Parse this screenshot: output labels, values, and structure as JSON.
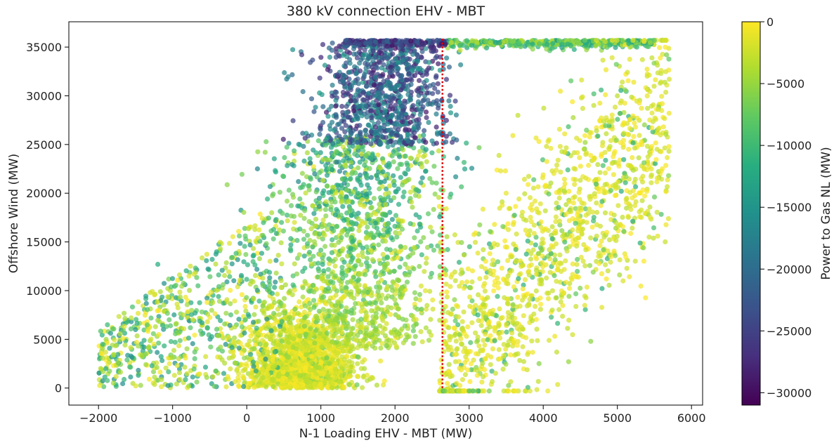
{
  "chart_data": {
    "type": "scatter",
    "title": "380 kV connection EHV - MBT",
    "xlabel": "N-1 Loading EHV - MBT (MW)",
    "ylabel": "Offshore Wind (MW)",
    "xlim": [
      -2400,
      6150
    ],
    "ylim": [
      -1750,
      37600
    ],
    "xticks": [
      -2000,
      -1000,
      0,
      1000,
      2000,
      3000,
      4000,
      5000,
      6000
    ],
    "xtick_labels": [
      "−2000",
      "−1000",
      "0",
      "1000",
      "2000",
      "3000",
      "4000",
      "5000",
      "6000"
    ],
    "yticks": [
      0,
      5000,
      10000,
      15000,
      20000,
      25000,
      30000,
      35000
    ],
    "ytick_labels": [
      "0",
      "5000",
      "10000",
      "15000",
      "20000",
      "25000",
      "30000",
      "35000"
    ],
    "threshold_line": {
      "x": 2640,
      "y_range": [
        0,
        36000
      ],
      "color": "#e00000",
      "style": "dotted"
    },
    "colorbar": {
      "label": "Power to Gas NL (MW)",
      "range": [
        -31000,
        0
      ],
      "ticks": [
        0,
        -5000,
        -10000,
        -15000,
        -20000,
        -25000,
        -30000
      ],
      "tick_labels": [
        "0",
        "−5000",
        "−10000",
        "−15000",
        "−20000",
        "−25000",
        "−30000"
      ],
      "colormap": "viridis",
      "colors": [
        "#440154",
        "#472f7d",
        "#3b528b",
        "#2c728e",
        "#21918c",
        "#28ae80",
        "#5ec962",
        "#addc30",
        "#fde725"
      ]
    },
    "point_count_approx": 6000,
    "series": [
      {
        "x": 500,
        "y": 1000,
        "c": -300
      },
      {
        "x": 700,
        "y": 2500,
        "c": -800
      },
      {
        "x": 900,
        "y": 4000,
        "c": -2000
      },
      {
        "x": 1200,
        "y": 6000,
        "c": -3000
      },
      {
        "x": -1900,
        "y": 2000,
        "c": -12000
      },
      {
        "x": -1500,
        "y": 6000,
        "c": -15000
      },
      {
        "x": -1200,
        "y": 12700,
        "c": -12000
      },
      {
        "x": 1500,
        "y": 20000,
        "c": -12000
      },
      {
        "x": 1800,
        "y": 25000,
        "c": -16000
      },
      {
        "x": 2000,
        "y": 35700,
        "c": -28000
      },
      {
        "x": 3500,
        "y": 20000,
        "c": -1000
      },
      {
        "x": 5000,
        "y": 30000,
        "c": -3000
      },
      {
        "x": 5500,
        "y": 35700,
        "c": -8000
      },
      {
        "x": 5700,
        "y": 31700,
        "c": -2000
      }
    ]
  }
}
